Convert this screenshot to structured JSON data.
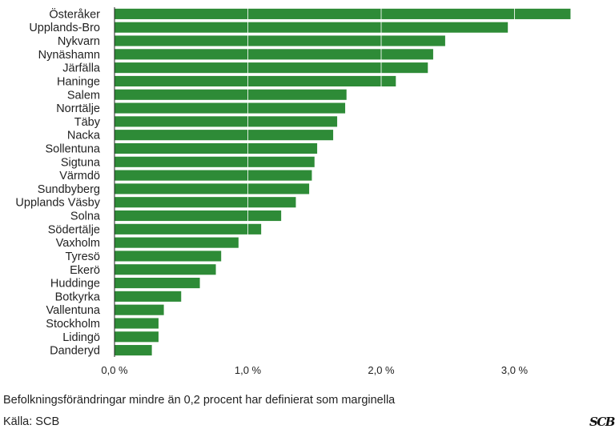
{
  "chart_data": {
    "type": "bar",
    "orientation": "horizontal",
    "categories": [
      "Österåker",
      "Upplands-Bro",
      "Nykvarn",
      "Nynäshamn",
      "Järfälla",
      "Haninge",
      "Salem",
      "Norrtälje",
      "Täby",
      "Nacka",
      "Sollentuna",
      "Sigtuna",
      "Värmdö",
      "Sundbyberg",
      "Upplands Väsby",
      "Solna",
      "Södertälje",
      "Vaxholm",
      "Tyresö",
      "Ekerö",
      "Huddinge",
      "Botkyrka",
      "Vallentuna",
      "Stockholm",
      "Lidingö",
      "Danderyd"
    ],
    "values": [
      3.42,
      2.95,
      2.48,
      2.39,
      2.35,
      2.11,
      1.74,
      1.73,
      1.67,
      1.64,
      1.52,
      1.5,
      1.48,
      1.46,
      1.36,
      1.25,
      1.1,
      0.93,
      0.8,
      0.76,
      0.64,
      0.5,
      0.37,
      0.33,
      0.33,
      0.28
    ],
    "xlim": [
      0,
      3.5
    ],
    "x_ticks": [
      0,
      1.0,
      2.0,
      3.0
    ],
    "x_tick_labels": [
      "0,0 %",
      "1,0 %",
      "2,0 %",
      "3,0 %"
    ],
    "grid": "vertical gridlines",
    "color": "#2e8b37"
  },
  "note": "Befolkningsförändringar mindre än 0,2 procent har definierat som marginella",
  "source": "Källa: SCB",
  "logo_text": "SCB"
}
